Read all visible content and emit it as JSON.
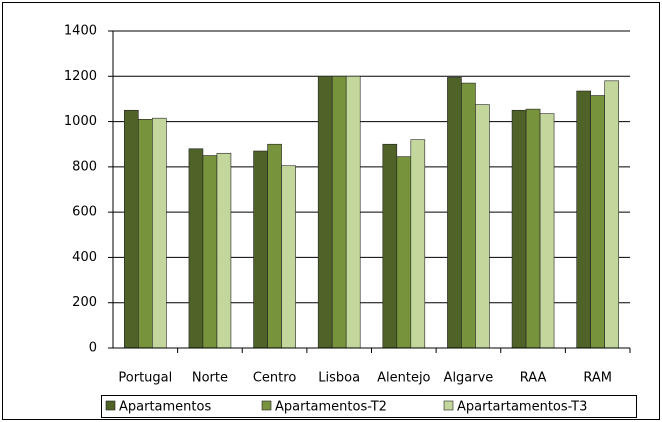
{
  "chart_data": {
    "type": "bar",
    "categories": [
      "Portugal",
      "Norte",
      "Centro",
      "Lisboa",
      "Alentejo",
      "Algarve",
      "RAA",
      "RAM"
    ],
    "series": [
      {
        "name": "Apartamentos",
        "color": "#4f6228",
        "values": [
          1050,
          880,
          870,
          1200,
          900,
          1195,
          1050,
          1135
        ]
      },
      {
        "name": "Apartamentos-T2",
        "color": "#77933c",
        "values": [
          1010,
          850,
          900,
          1200,
          845,
          1170,
          1055,
          1115
        ]
      },
      {
        "name": "Apartartamentos-T3",
        "color": "#c3d69b",
        "values": [
          1015,
          860,
          805,
          1200,
          920,
          1075,
          1035,
          1180
        ]
      }
    ],
    "ylim": [
      0,
      1400
    ],
    "yticks": [
      0,
      200,
      400,
      600,
      800,
      1000,
      1200,
      1400
    ],
    "grid": true,
    "legend": "bottom"
  }
}
